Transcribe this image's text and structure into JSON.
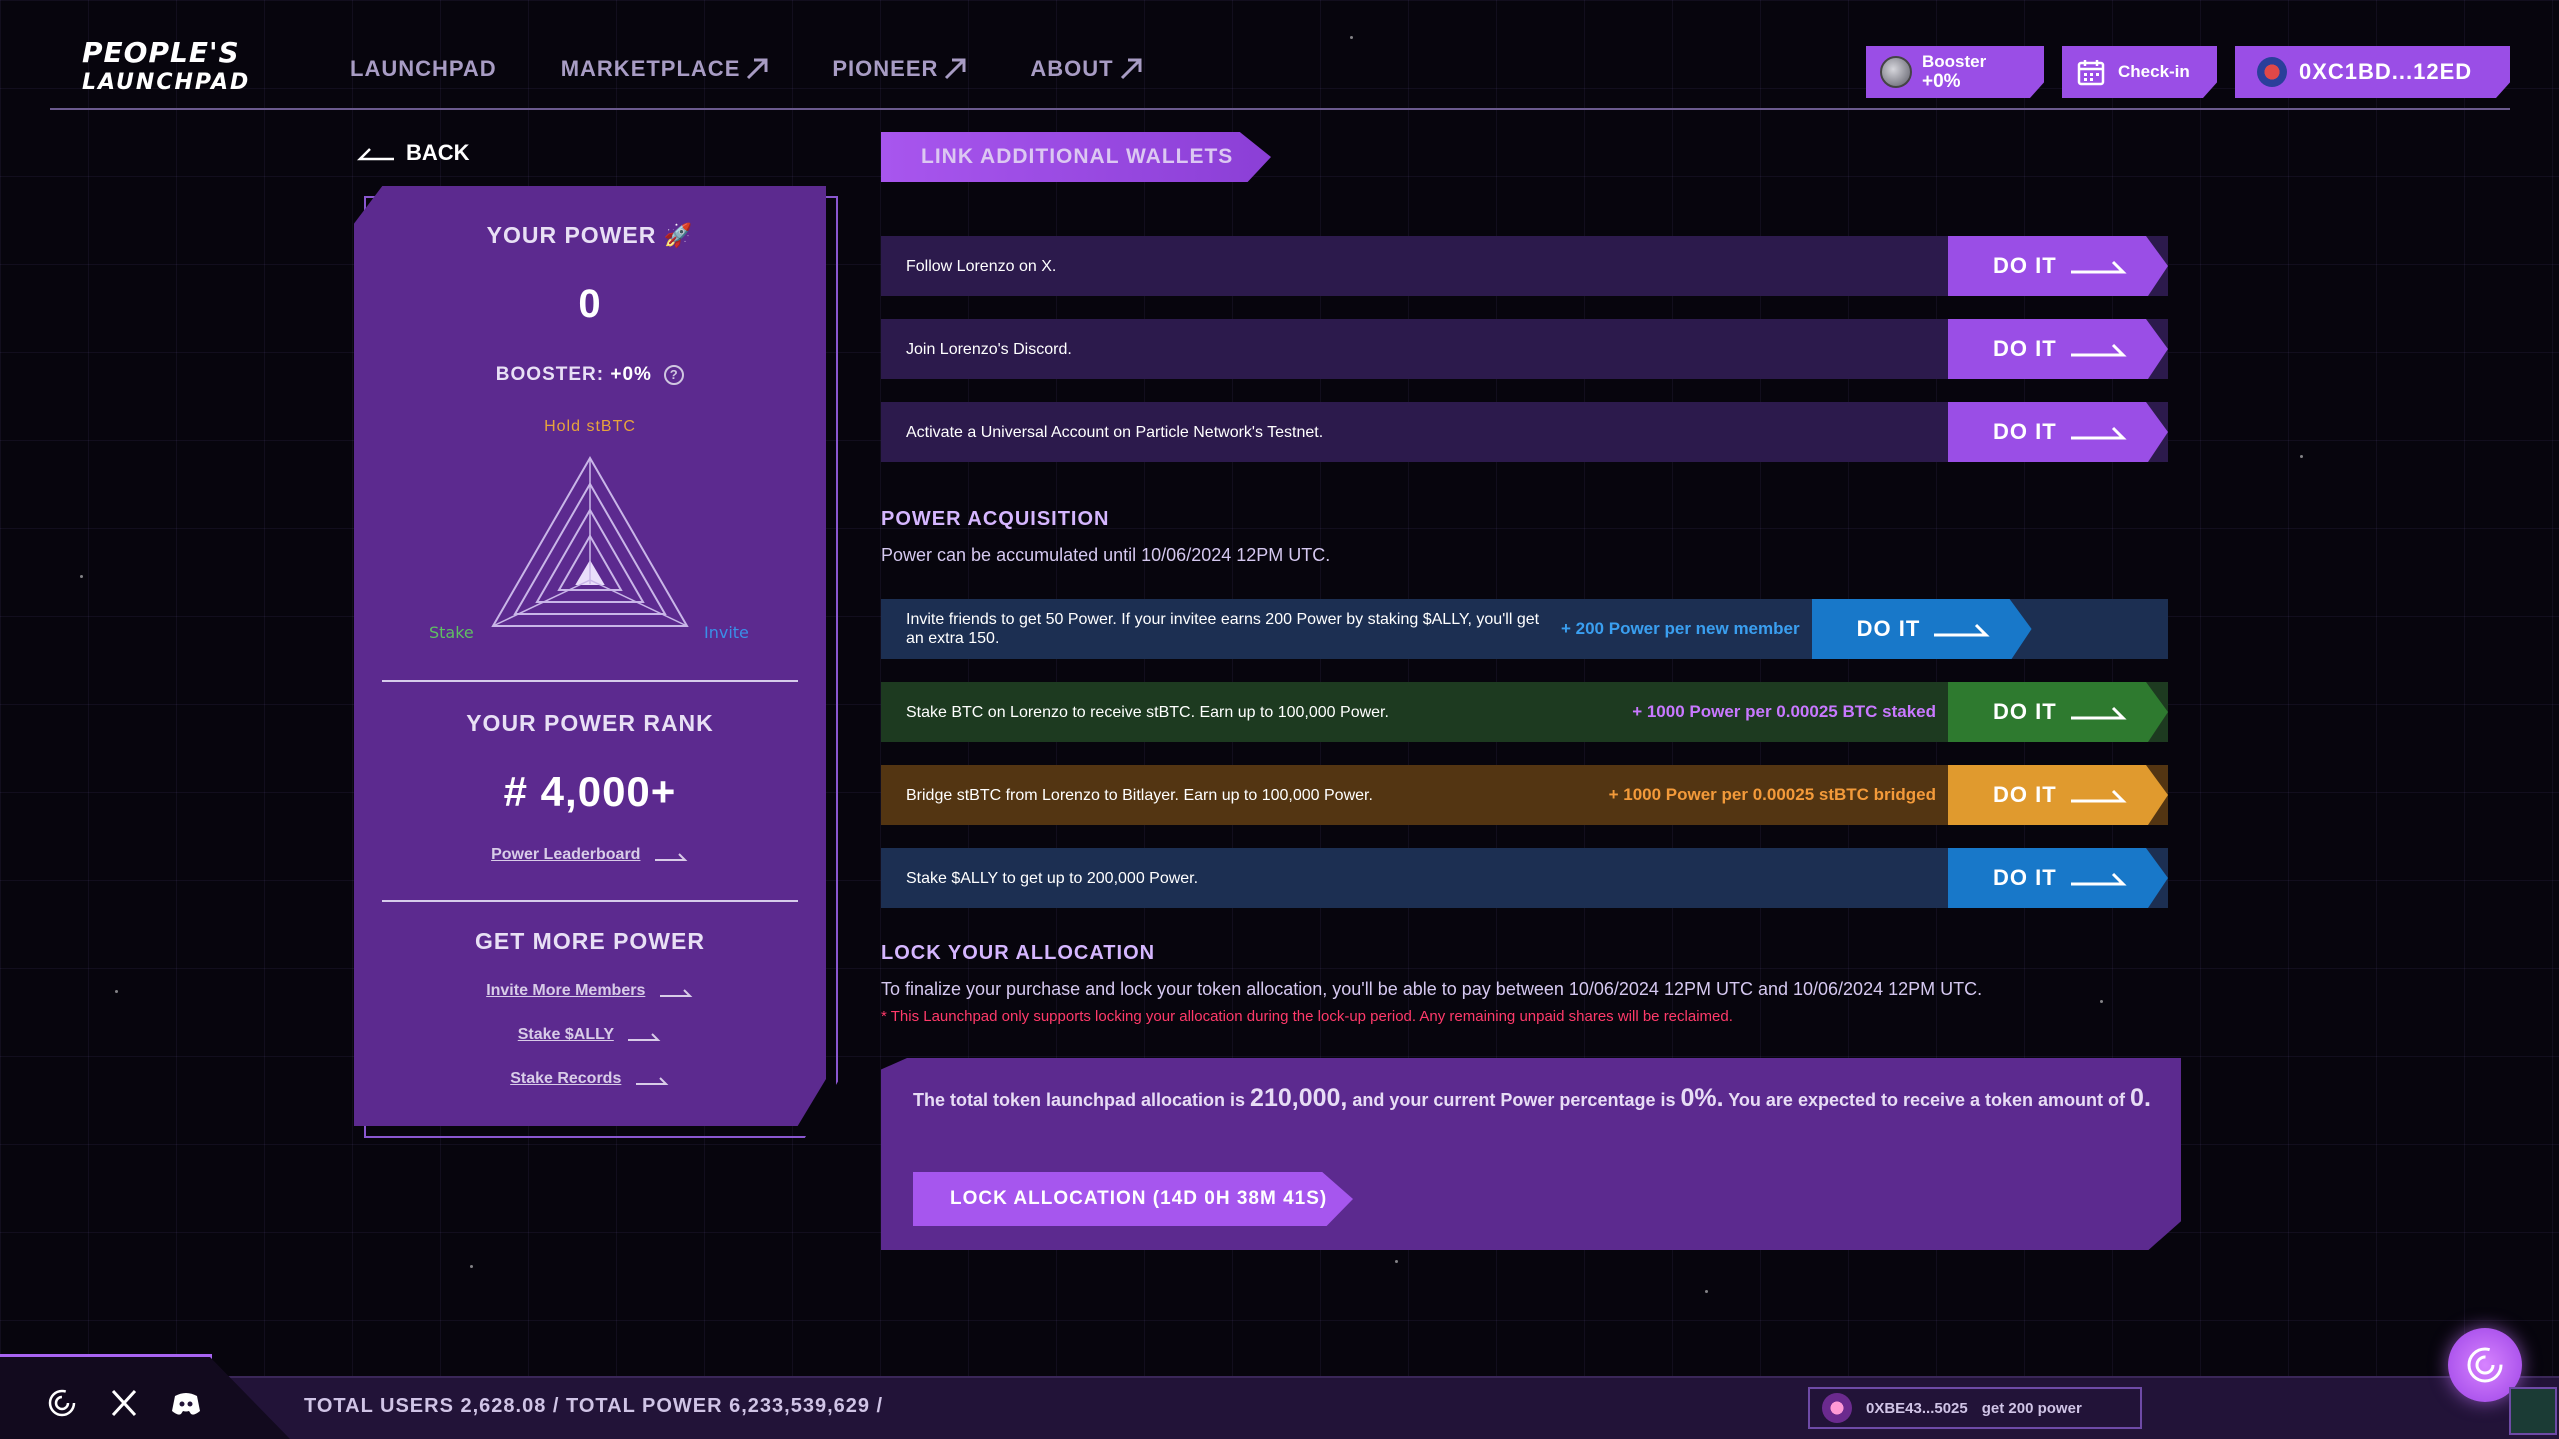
{
  "header": {
    "logo_line1": "PEOPLE'S",
    "logo_line2": "LAUNCHPAD",
    "nav": [
      {
        "label": "LAUNCHPAD",
        "external": false
      },
      {
        "label": "MARKETPLACE",
        "external": true
      },
      {
        "label": "PIONEER",
        "external": true
      },
      {
        "label": "ABOUT",
        "external": true
      }
    ],
    "booster_label": "Booster",
    "booster_value": "+0%",
    "checkin_label": "Check-in",
    "wallet_address": "0XC1BD...12ED"
  },
  "back_label": "BACK",
  "power_panel": {
    "title": "YOUR POWER",
    "power_value": "0",
    "booster_label": "BOOSTER:",
    "booster_value": "+0%",
    "radar_top_label": "Hold stBTC",
    "radar_left_label": "Stake",
    "radar_right_label": "Invite",
    "rank_title": "YOUR POWER RANK",
    "rank_value": "# 4,000+",
    "leaderboard_link": "Power Leaderboard",
    "more_title": "GET MORE POWER",
    "more_links": [
      "Invite More Members",
      "Stake $ALLY",
      "Stake Records"
    ]
  },
  "link_wallets_label": "LINK ADDITIONAL WALLETS",
  "do_it_label": "DO IT",
  "social_tasks": [
    {
      "text": "Follow Lorenzo on X."
    },
    {
      "text": "Join Lorenzo's Discord."
    },
    {
      "text": "Activate a Universal Account on Particle Network's Testnet."
    }
  ],
  "power_acquisition": {
    "title": "POWER ACQUISITION",
    "subtitle": "Power can be accumulated until 10/06/2024 12PM UTC.",
    "tasks": [
      {
        "text": "Invite friends to get 50 Power. If your invitee earns 200 Power by staking $ALLY, you'll get an extra 150.",
        "reward": "+ 200 Power per new member",
        "theme": "blue"
      },
      {
        "text": "Stake BTC on Lorenzo to receive stBTC. Earn up to 100,000 Power.",
        "reward": "+ 1000 Power per 0.00025 BTC staked",
        "theme": "green"
      },
      {
        "text": "Bridge stBTC from Lorenzo to Bitlayer. Earn up to 100,000 Power.",
        "reward": "+ 1000 Power per 0.00025 stBTC bridged",
        "theme": "orange"
      },
      {
        "text": "Stake $ALLY to get up to 200,000 Power.",
        "reward": "",
        "theme": "blue"
      }
    ]
  },
  "lock": {
    "title": "LOCK YOUR ALLOCATION",
    "desc": "To finalize your purchase and lock your token allocation, you'll be able to pay between 10/06/2024 12PM UTC and 10/06/2024 12PM UTC.",
    "warning": "* This Launchpad only supports locking your allocation during the lock-up period. Any remaining unpaid shares will be reclaimed.",
    "alloc_pre": "The total token launchpad allocation is ",
    "alloc_total": "210,000,",
    "alloc_mid": " and your current Power percentage is ",
    "alloc_pct": "0%.",
    "alloc_post": " You are expected to receive a token amount of ",
    "alloc_amount": "0.",
    "button_label": "LOCK ALLOCATION (14D 0H 38M 41S)"
  },
  "footer": {
    "stats": "TOTAL USERS 2,628.08  /  TOTAL POWER 6,233,539,629  /",
    "ticker_address": "0XBE43...5025",
    "ticker_action": "get 200 power"
  },
  "colors": {
    "panel": "#5c2a8f",
    "accent": "#a656ee",
    "blue_row": "#1c2f52",
    "blue_btn": "#1878c9",
    "green_row": "#1d3a20",
    "green_btn": "#2e7a2f",
    "orange_row": "#533512",
    "orange_btn": "#e09a2e",
    "purple_row": "#2c1a4c"
  }
}
